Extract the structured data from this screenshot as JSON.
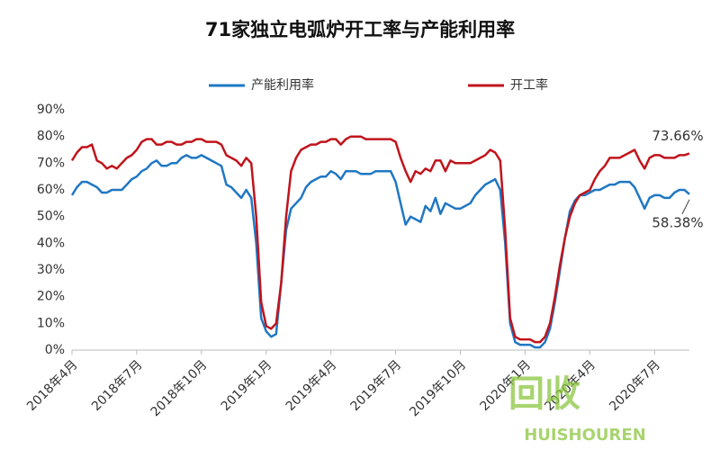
{
  "chart_data": {
    "type": "line",
    "title": "71家独立电弧炉开工率与产能利用率",
    "categories": [
      "2018年4月",
      null,
      null,
      null,
      null,
      null,
      null,
      null,
      null,
      null,
      null,
      null,
      null,
      "2018年7月",
      null,
      null,
      null,
      null,
      null,
      null,
      null,
      null,
      null,
      null,
      null,
      null,
      "2018年10月",
      null,
      null,
      null,
      null,
      null,
      null,
      null,
      null,
      null,
      null,
      null,
      null,
      "2019年1月",
      null,
      null,
      null,
      null,
      null,
      null,
      null,
      null,
      null,
      null,
      null,
      null,
      "2019年4月",
      null,
      null,
      null,
      null,
      null,
      null,
      null,
      null,
      null,
      null,
      null,
      null,
      "2019年7月",
      null,
      null,
      null,
      null,
      null,
      null,
      null,
      null,
      null,
      null,
      null,
      null,
      "2019年10月",
      null,
      null,
      null,
      null,
      null,
      null,
      null,
      null,
      null,
      null,
      null,
      null,
      "2020年1月",
      null,
      null,
      null,
      null,
      null,
      null,
      null,
      null,
      null,
      null,
      null,
      null,
      "2020年4月",
      null,
      null,
      null,
      null,
      null,
      null,
      null,
      null,
      null,
      null,
      null,
      null,
      "2020年7月",
      null,
      null,
      null,
      null,
      null,
      null,
      null
    ],
    "series": [
      {
        "name": "产能利用率",
        "color": "#1f77c4",
        "values": [
          58,
          61,
          63,
          63,
          62,
          61,
          59,
          59,
          60,
          60,
          60,
          62,
          64,
          65,
          67,
          68,
          70,
          71,
          69,
          69,
          70,
          70,
          72,
          73,
          72,
          72,
          73,
          72,
          71,
          70,
          69,
          62,
          61,
          59,
          57,
          60,
          57,
          40,
          12,
          7,
          5,
          6,
          25,
          45,
          53,
          55,
          57,
          61,
          63,
          64,
          65,
          65,
          67,
          66,
          64,
          67,
          67,
          67,
          66,
          66,
          66,
          67,
          67,
          67,
          67,
          63,
          55,
          47,
          50,
          49,
          48,
          54,
          52,
          57,
          51,
          55,
          54,
          53,
          53,
          54,
          55,
          58,
          60,
          62,
          63,
          64,
          60,
          40,
          10,
          3,
          2,
          2,
          2,
          1,
          1,
          3,
          8,
          18,
          30,
          42,
          52,
          56,
          58,
          58,
          59,
          60,
          60,
          61,
          62,
          62,
          63,
          63,
          63,
          61,
          57,
          53,
          57,
          58,
          58,
          57,
          57,
          59,
          60,
          60,
          58.38
        ],
        "value_labels": [
          null,
          null,
          null,
          null,
          null,
          null,
          null,
          null,
          null,
          null,
          null,
          null,
          null,
          null,
          null,
          null,
          null,
          null,
          null,
          null,
          null,
          null,
          null,
          null,
          null,
          null,
          null,
          null,
          null,
          null,
          null,
          null,
          null,
          null,
          null,
          null,
          null,
          null,
          null,
          null,
          null,
          null,
          null,
          null,
          null,
          null,
          null,
          null,
          null,
          null,
          null,
          null,
          null,
          null,
          null,
          null,
          null,
          null,
          null,
          null,
          null,
          null,
          null,
          null,
          null,
          null,
          null,
          null,
          null,
          null,
          null,
          null,
          null,
          null,
          null,
          null,
          null,
          null,
          null,
          null,
          null,
          null,
          null,
          null,
          null,
          null,
          null,
          null,
          null,
          null,
          null,
          null,
          null,
          null,
          null,
          null,
          null,
          null,
          null,
          null,
          null,
          null,
          null,
          null,
          null,
          null,
          null,
          null,
          null,
          null,
          null,
          null,
          null,
          null,
          null,
          null,
          null,
          null,
          null,
          null,
          null,
          null,
          null,
          null,
          "58.38%"
        ]
      },
      {
        "name": "开工率",
        "color": "#c0141c",
        "values": [
          71,
          74,
          76,
          76,
          77,
          71,
          70,
          68,
          69,
          68,
          70,
          72,
          73,
          75,
          78,
          79,
          79,
          77,
          77,
          78,
          78,
          77,
          77,
          78,
          78,
          79,
          79,
          78,
          78,
          78,
          77,
          73,
          72,
          71,
          69,
          72,
          70,
          50,
          18,
          9,
          8,
          10,
          25,
          50,
          67,
          72,
          75,
          76,
          77,
          77,
          78,
          78,
          79,
          79,
          77,
          79,
          80,
          80,
          80,
          79,
          79,
          79,
          79,
          79,
          79,
          78,
          72,
          67,
          63,
          67,
          66,
          68,
          67,
          71,
          71,
          67,
          71,
          70,
          70,
          70,
          70,
          71,
          72,
          73,
          75,
          74,
          71,
          45,
          12,
          5,
          4,
          4,
          4,
          3,
          3,
          5,
          10,
          20,
          32,
          42,
          50,
          55,
          58,
          59,
          60,
          64,
          67,
          69,
          72,
          72,
          72,
          73,
          74,
          75,
          71,
          68,
          72,
          73,
          73,
          72,
          72,
          72,
          73,
          73,
          73.66
        ],
        "value_labels": [
          null,
          null,
          null,
          null,
          null,
          null,
          null,
          null,
          null,
          null,
          null,
          null,
          null,
          null,
          null,
          null,
          null,
          null,
          null,
          null,
          null,
          null,
          null,
          null,
          null,
          null,
          null,
          null,
          null,
          null,
          null,
          null,
          null,
          null,
          null,
          null,
          null,
          null,
          null,
          null,
          null,
          null,
          null,
          null,
          null,
          null,
          null,
          null,
          null,
          null,
          null,
          null,
          null,
          null,
          null,
          null,
          null,
          null,
          null,
          null,
          null,
          null,
          null,
          null,
          null,
          null,
          null,
          null,
          null,
          null,
          null,
          null,
          null,
          null,
          null,
          null,
          null,
          null,
          null,
          null,
          null,
          null,
          null,
          null,
          null,
          null,
          null,
          null,
          null,
          null,
          null,
          null,
          null,
          null,
          null,
          null,
          null,
          null,
          null,
          null,
          null,
          null,
          null,
          null,
          null,
          null,
          null,
          null,
          null,
          null,
          null,
          null,
          null,
          null,
          null,
          null,
          null,
          null,
          null,
          null,
          null,
          null,
          null,
          null,
          "73.66%"
        ]
      }
    ],
    "ylim": [
      0,
      90
    ],
    "yticks": [
      {
        "value": 0,
        "label": "0%"
      },
      {
        "value": 10,
        "label": "10%"
      },
      {
        "value": 20,
        "label": "20%"
      },
      {
        "value": 30,
        "label": "30%"
      },
      {
        "value": 40,
        "label": "40%"
      },
      {
        "value": 50,
        "label": "50%"
      },
      {
        "value": 60,
        "label": "60%"
      },
      {
        "value": 70,
        "label": "70%"
      },
      {
        "value": 80,
        "label": "80%"
      },
      {
        "value": 90,
        "label": "90%"
      }
    ],
    "grid": false,
    "legend": "top",
    "watermark": {
      "mark": "回收",
      "text": "HUISHOUREN"
    }
  }
}
